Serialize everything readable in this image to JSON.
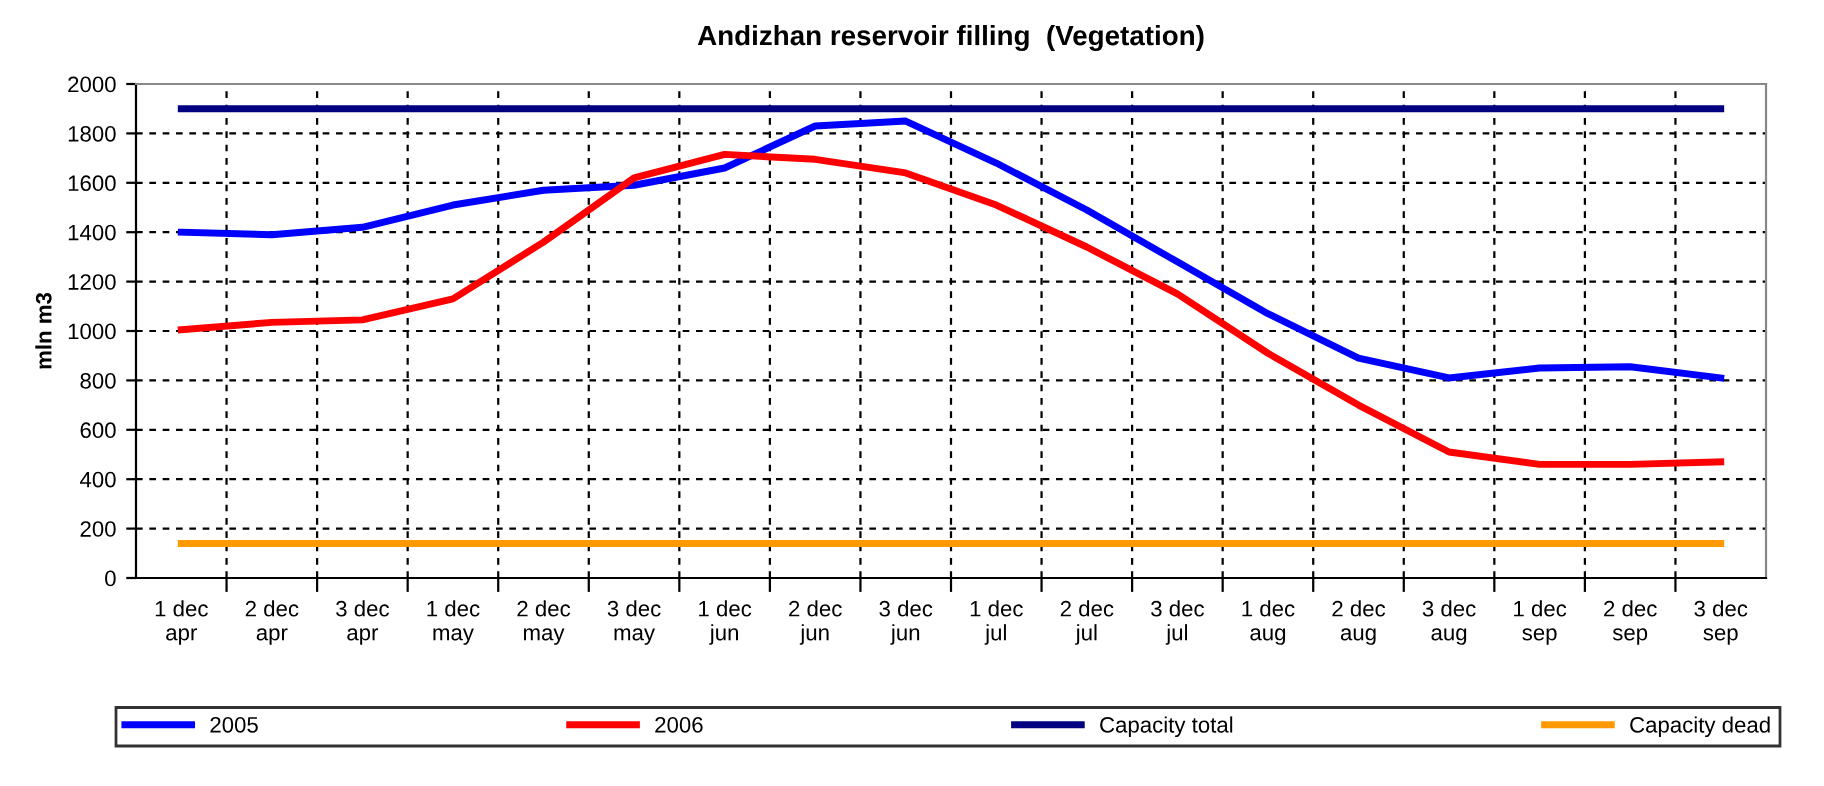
{
  "chart_data": {
    "type": "line",
    "title": "Andizhan reservoir filling  (Vegetation)",
    "ylabel": "mln m3",
    "categories": [
      "1 dec\napr",
      "2 dec\napr",
      "3 dec\napr",
      "1 dec\nmay",
      "2 dec\nmay",
      "3 dec\nmay",
      "1 dec\njun",
      "2 dec\njun",
      "3 dec\njun",
      "1 dec\njul",
      "2 dec\njul",
      "3 dec\njul",
      "1 dec\naug",
      "2 dec\naug",
      "3 dec\naug",
      "1 dec\nsep",
      "2 dec\nsep",
      "3 dec\nsep"
    ],
    "series": [
      {
        "name": "2005",
        "color": "#0000ff",
        "values": [
          1400,
          1390,
          1420,
          1510,
          1570,
          1590,
          1660,
          1830,
          1850,
          1680,
          1490,
          1280,
          1070,
          890,
          810,
          850,
          855,
          810
        ]
      },
      {
        "name": "2006",
        "color": "#ff0000",
        "values": [
          1005,
          1035,
          1045,
          1130,
          1360,
          1620,
          1715,
          1695,
          1640,
          1510,
          1340,
          1150,
          910,
          700,
          510,
          460,
          460,
          470
        ]
      },
      {
        "name": "Capacity total",
        "color": "#000080",
        "values": [
          1900,
          1900,
          1900,
          1900,
          1900,
          1900,
          1900,
          1900,
          1900,
          1900,
          1900,
          1900,
          1900,
          1900,
          1900,
          1900,
          1900,
          1900
        ]
      },
      {
        "name": "Capacity dead",
        "color": "#ff9900",
        "values": [
          140,
          140,
          140,
          140,
          140,
          140,
          140,
          140,
          140,
          140,
          140,
          140,
          140,
          140,
          140,
          140,
          140,
          140
        ]
      }
    ],
    "ylim": [
      0,
      2000
    ],
    "yticks": [
      0,
      200,
      400,
      600,
      800,
      1000,
      1200,
      1400,
      1600,
      1800,
      2000
    ],
    "grid": true,
    "legend": "bottom",
    "line_style": "solid",
    "marker": "none"
  }
}
